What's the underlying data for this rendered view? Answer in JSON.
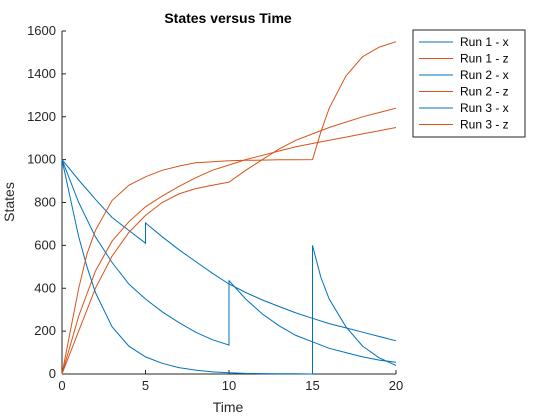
{
  "chart_data": {
    "type": "line",
    "title": "States versus Time",
    "xlabel": "Time",
    "ylabel": "States",
    "xlim": [
      0,
      20
    ],
    "ylim": [
      0,
      1600
    ],
    "xticks": [
      "0",
      "5",
      "10",
      "15",
      "20"
    ],
    "yticks": [
      "0",
      "200",
      "400",
      "600",
      "800",
      "1000",
      "1200",
      "1400",
      "1600"
    ],
    "grid": false,
    "legend_position": "outside-top-right",
    "colors": {
      "x": "#0072BD",
      "z": "#D95319"
    },
    "series": [
      {
        "name": "Run 1 - x",
        "color": "#0072BD",
        "x": [
          0,
          1,
          2,
          3,
          4,
          5,
          5,
          6,
          7,
          8,
          9,
          10,
          11,
          12,
          13,
          14,
          15,
          16,
          17,
          18,
          19,
          20
        ],
        "y": [
          1000,
          905,
          815,
          730,
          670,
          610,
          705,
          640,
          580,
          525,
          470,
          420,
          380,
          345,
          315,
          285,
          260,
          235,
          215,
          195,
          175,
          155
        ]
      },
      {
        "name": "Run 1 - z",
        "color": "#D95319",
        "x": [
          0,
          1,
          2,
          3,
          4,
          5,
          6,
          7,
          8,
          9,
          10,
          11,
          12,
          13,
          14,
          15,
          16,
          17,
          18,
          19,
          20
        ],
        "y": [
          0,
          270,
          480,
          620,
          710,
          780,
          830,
          875,
          915,
          950,
          975,
          1000,
          1020,
          1040,
          1060,
          1075,
          1090,
          1105,
          1120,
          1135,
          1150
        ]
      },
      {
        "name": "Run 2 - x",
        "color": "#0072BD",
        "x": [
          0,
          1,
          2,
          3,
          4,
          5,
          6,
          7,
          8,
          9,
          10,
          10,
          11,
          12,
          13,
          14,
          15,
          16,
          17,
          18,
          19,
          20
        ],
        "y": [
          1000,
          800,
          640,
          520,
          420,
          350,
          290,
          240,
          195,
          160,
          135,
          435,
          350,
          280,
          225,
          180,
          150,
          120,
          100,
          80,
          65,
          55
        ]
      },
      {
        "name": "Run 2 - z",
        "color": "#D95319",
        "x": [
          0,
          1,
          2,
          3,
          4,
          5,
          6,
          7,
          8,
          9,
          10,
          11,
          12,
          13,
          14,
          15,
          16,
          17,
          18,
          19,
          20
        ],
        "y": [
          0,
          200,
          400,
          550,
          660,
          740,
          800,
          840,
          865,
          880,
          895,
          950,
          1000,
          1050,
          1090,
          1120,
          1150,
          1175,
          1200,
          1220,
          1240
        ]
      },
      {
        "name": "Run 3 - x",
        "color": "#0072BD",
        "x": [
          0,
          0.5,
          1,
          1.5,
          2,
          3,
          4,
          5,
          6,
          7,
          8,
          9,
          10,
          11,
          12,
          13,
          14,
          15,
          15,
          15.5,
          16,
          17,
          18,
          19,
          20
        ],
        "y": [
          1000,
          820,
          640,
          500,
          380,
          220,
          130,
          80,
          50,
          30,
          18,
          10,
          6,
          3,
          2,
          1,
          1,
          0,
          600,
          450,
          350,
          220,
          130,
          75,
          40
        ]
      },
      {
        "name": "Run 3 - z",
        "color": "#D95319",
        "x": [
          0,
          0.5,
          1,
          1.5,
          2,
          3,
          4,
          5,
          6,
          7,
          8,
          9,
          10,
          11,
          12,
          13,
          14,
          15,
          15.5,
          16,
          17,
          18,
          19,
          20
        ],
        "y": [
          0,
          200,
          400,
          560,
          670,
          810,
          880,
          920,
          950,
          970,
          985,
          990,
          995,
          997,
          998,
          999,
          999,
          1000,
          1130,
          1240,
          1390,
          1480,
          1525,
          1550
        ]
      }
    ]
  }
}
